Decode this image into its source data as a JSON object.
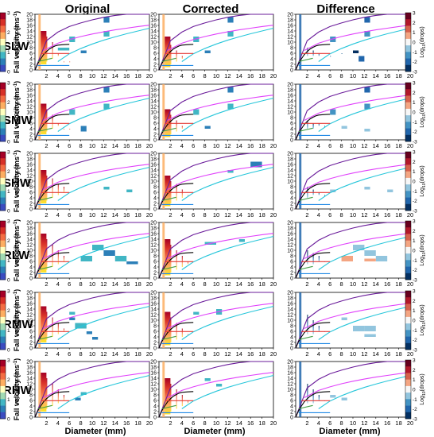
{
  "columns": [
    "Original",
    "Corrected",
    "Difference"
  ],
  "rows": [
    "SLW",
    "SMW",
    "SHW",
    "RLW",
    "RMW",
    "RHW"
  ],
  "x_axis": {
    "label": "Diameter (mm)",
    "ticks": [
      "2",
      "4",
      "6",
      "8",
      "10",
      "12",
      "14",
      "16",
      "18",
      "20"
    ],
    "range": [
      0,
      20
    ]
  },
  "y_axis": {
    "label_main": "Fall velocity (ms",
    "label_sup": "-1",
    "label_tail": ")",
    "ticks": [
      "0",
      "2",
      "4",
      "6",
      "8",
      "10",
      "12",
      "14",
      "16",
      "18",
      "20"
    ],
    "range": [
      0,
      20
    ]
  },
  "colorbars": {
    "count": {
      "label": "Log10(drops)",
      "ticks": [
        "0",
        "1",
        "2",
        "3"
      ],
      "colors": [
        "#3b4cc0",
        "#2c7fb8",
        "#41b6c4",
        "#a1dab4",
        "#ffffbf",
        "#fdae61",
        "#f46d43",
        "#d73027",
        "#a50026"
      ]
    },
    "difference": {
      "label_main": "Log",
      "label_sub": "10",
      "label_tail": "(drops)",
      "ticks": [
        "3",
        "2",
        "1",
        "0",
        "-1",
        "-2",
        "-3"
      ],
      "colors": [
        "#053061",
        "#2166ac",
        "#4393c3",
        "#92c5de",
        "#f7f7f7",
        "#f4a582",
        "#d6604d",
        "#b2182b",
        "#67001f"
      ]
    }
  },
  "chart_data": {
    "type": "heatmap",
    "x_range": [
      0,
      20
    ],
    "y_range": [
      0,
      20
    ],
    "reference_curves": [
      {
        "color": "#6a1b9a",
        "x": [
          0,
          2,
          4,
          6,
          8,
          10,
          12,
          14,
          16,
          18,
          20
        ],
        "y": [
          0,
          10.5,
          13.6,
          15.6,
          16.9,
          18.0,
          18.9,
          19.6,
          20.2,
          20.8,
          21.3
        ]
      },
      {
        "color": "#e040fb",
        "x": [
          1.5,
          4,
          6,
          8,
          10,
          12,
          14,
          16,
          18,
          20
        ],
        "y": [
          7.0,
          9.6,
          10.9,
          12.0,
          12.9,
          13.7,
          14.4,
          15.0,
          15.6,
          16.1
        ]
      },
      {
        "color": "#26c6da",
        "x": [
          4,
          6,
          8,
          10,
          12,
          14,
          16,
          18,
          20
        ],
        "y": [
          3.0,
          5.8,
          7.7,
          9.3,
          10.7,
          11.9,
          13.0,
          14.0,
          15.0
        ]
      },
      {
        "color": "#000000",
        "x": [
          0,
          0.5,
          1,
          1.5,
          2,
          2.5,
          3,
          3.5,
          4,
          5,
          6
        ],
        "y": [
          0,
          2.3,
          4.0,
          5.5,
          6.6,
          7.5,
          8.1,
          8.6,
          8.9,
          9.1,
          9.2
        ]
      },
      {
        "color": "#e53935",
        "x": [
          1,
          6
        ],
        "y": [
          5.9,
          5.9
        ]
      },
      {
        "color": "#1e88e5",
        "x": [
          0.5,
          6
        ],
        "y": [
          1.6,
          1.6
        ]
      },
      {
        "color": "#43a047",
        "x": [
          0.5,
          3
        ],
        "y": [
          3.0,
          4.2
        ]
      }
    ],
    "panels": [
      {
        "row": "SLW",
        "col": "Original",
        "blocks": [
          [
            1,
            2,
            2,
            14
          ],
          [
            2,
            2,
            3,
            12
          ],
          [
            3,
            2,
            4,
            10
          ],
          [
            4,
            2,
            5,
            6
          ],
          [
            5,
            2,
            5,
            3
          ],
          [
            6,
            2,
            6,
            3
          ],
          [
            12,
            13,
            17,
            19,
            "#2c7fb8"
          ],
          [
            12,
            13,
            12,
            14,
            "#41b6c4"
          ],
          [
            6,
            7,
            10,
            12,
            "#41b6c4"
          ],
          [
            4,
            6,
            7,
            8,
            "#41b6c4"
          ],
          [
            8,
            9,
            6,
            7,
            "#2c7fb8"
          ]
        ]
      },
      {
        "row": "SLW",
        "col": "Corrected",
        "blocks": [
          [
            1,
            2,
            1,
            12
          ],
          [
            2,
            2,
            2,
            9
          ],
          [
            3,
            2,
            3,
            7
          ],
          [
            4,
            2,
            4,
            5
          ],
          [
            12,
            13,
            17,
            19,
            "#2c7fb8"
          ],
          [
            12,
            13,
            12,
            14,
            "#41b6c4"
          ],
          [
            6,
            7,
            10,
            12,
            "#41b6c4"
          ],
          [
            8,
            9,
            6,
            7,
            "#2c7fb8"
          ]
        ]
      },
      {
        "row": "SLW",
        "col": "Difference",
        "blocks": [
          [
            2,
            2,
            5,
            8
          ],
          [
            3,
            3,
            5,
            7
          ],
          [
            4,
            2,
            5,
            6
          ],
          [
            6,
            2,
            8,
            5
          ],
          [
            8,
            3,
            9,
            6
          ],
          [
            12,
            13,
            17,
            19,
            "#2166ac"
          ],
          [
            12,
            13,
            12,
            14,
            "#4393c3"
          ],
          [
            6,
            7,
            10,
            12,
            "#4393c3"
          ],
          [
            10,
            11,
            6,
            7,
            "#053061"
          ],
          [
            11,
            12,
            3,
            5,
            "#2166ac"
          ]
        ]
      },
      {
        "row": "SMW",
        "col": "Original",
        "blocks": [
          [
            1,
            2,
            2,
            13
          ],
          [
            2,
            2,
            3,
            11
          ],
          [
            3,
            2,
            4,
            9
          ],
          [
            4,
            2,
            5,
            6
          ],
          [
            5,
            2,
            6,
            4
          ],
          [
            6,
            2,
            7,
            4
          ],
          [
            12,
            13,
            17,
            19,
            "#2c7fb8"
          ],
          [
            12,
            13,
            11,
            13,
            "#41b6c4"
          ],
          [
            6,
            7,
            9,
            11,
            "#41b6c4"
          ],
          [
            8,
            9,
            4,
            5,
            "#2c7fb8"
          ],
          [
            8,
            9,
            3,
            4,
            "#2c7fb8"
          ]
        ]
      },
      {
        "row": "SMW",
        "col": "Corrected",
        "blocks": [
          [
            1,
            2,
            1,
            11
          ],
          [
            2,
            2,
            2,
            9
          ],
          [
            3,
            2,
            3,
            7
          ],
          [
            4,
            2,
            4,
            5
          ],
          [
            12,
            13,
            17,
            19,
            "#2c7fb8"
          ],
          [
            12,
            13,
            11,
            13,
            "#41b6c4"
          ],
          [
            6,
            7,
            9,
            11,
            "#41b6c4"
          ],
          [
            8,
            9,
            4,
            5,
            "#2c7fb8"
          ]
        ]
      },
      {
        "row": "SMW",
        "col": "Difference",
        "blocks": [
          [
            2,
            2,
            4,
            7
          ],
          [
            3,
            3,
            4,
            6
          ],
          [
            4,
            2,
            5,
            6
          ],
          [
            5,
            3,
            6,
            5
          ],
          [
            12,
            13,
            17,
            19,
            "#2166ac"
          ],
          [
            12,
            13,
            11,
            13,
            "#4393c3"
          ],
          [
            6,
            7,
            9,
            11,
            "#4393c3"
          ],
          [
            8,
            9,
            4,
            5,
            "#92c5de"
          ],
          [
            12,
            13,
            3,
            4,
            "#92c5de"
          ]
        ]
      },
      {
        "row": "SHW",
        "col": "Original",
        "blocks": [
          [
            1,
            2,
            2,
            14
          ],
          [
            2,
            2,
            3,
            12
          ],
          [
            3,
            2,
            4,
            11
          ],
          [
            4,
            2,
            5,
            9
          ],
          [
            5,
            2,
            6,
            8
          ],
          [
            6,
            2,
            7,
            6
          ],
          [
            12,
            13,
            7,
            8,
            "#41b6c4"
          ],
          [
            16,
            17,
            6,
            7,
            "#41b6c4"
          ]
        ]
      },
      {
        "row": "SHW",
        "col": "Corrected",
        "blocks": [
          [
            1,
            2,
            1,
            12
          ],
          [
            2,
            2,
            2,
            10
          ],
          [
            3,
            2,
            3,
            9
          ],
          [
            4,
            2,
            4,
            7
          ],
          [
            5,
            2,
            5,
            5
          ],
          [
            16,
            18,
            15,
            17,
            "#2c7fb8"
          ],
          [
            12,
            13,
            13,
            14,
            "#41b6c4"
          ]
        ]
      },
      {
        "row": "SHW",
        "col": "Difference",
        "blocks": [
          [
            2,
            2,
            4,
            8
          ],
          [
            3,
            3,
            5,
            7
          ],
          [
            4,
            2,
            5,
            6
          ],
          [
            5,
            3,
            6,
            5
          ],
          [
            12,
            13,
            7,
            8,
            "#92c5de"
          ],
          [
            16,
            17,
            6,
            7,
            "#92c5de"
          ],
          [
            6,
            7,
            6,
            7,
            "#92c5de"
          ]
        ]
      },
      {
        "row": "RLW",
        "col": "Original",
        "blocks": [
          [
            1,
            2,
            2,
            16
          ],
          [
            2,
            2,
            3,
            14
          ],
          [
            3,
            2,
            4,
            12
          ],
          [
            4,
            2,
            5,
            10
          ],
          [
            5,
            2,
            6,
            8
          ],
          [
            6,
            2,
            7,
            6
          ],
          [
            10,
            12,
            10,
            12,
            "#41b6c4"
          ],
          [
            12,
            14,
            8,
            10,
            "#2c7fb8"
          ],
          [
            14,
            16,
            6,
            8,
            "#41b6c4"
          ],
          [
            16,
            18,
            5,
            6,
            "#2c7fb8"
          ],
          [
            8,
            10,
            6,
            8,
            "#41b6c4"
          ]
        ]
      },
      {
        "row": "RLW",
        "col": "Corrected",
        "blocks": [
          [
            1,
            2,
            1,
            14
          ],
          [
            2,
            2,
            2,
            12
          ],
          [
            3,
            2,
            3,
            10
          ],
          [
            4,
            2,
            4,
            8
          ],
          [
            5,
            2,
            5,
            6
          ],
          [
            8,
            10,
            12,
            13,
            "#41b6c4"
          ],
          [
            14,
            15,
            13,
            14,
            "#41b6c4"
          ]
        ]
      },
      {
        "row": "RLW",
        "col": "Difference",
        "blocks": [
          [
            2,
            2,
            5,
            10
          ],
          [
            3,
            3,
            5,
            9
          ],
          [
            4,
            2,
            6,
            8
          ],
          [
            5,
            3,
            7,
            6
          ],
          [
            10,
            12,
            10,
            12,
            "#92c5de"
          ],
          [
            12,
            14,
            8,
            10,
            "#92c5de"
          ],
          [
            14,
            16,
            6,
            8,
            "#92c5de"
          ],
          [
            8,
            10,
            6,
            8,
            "#f4a582"
          ],
          [
            12,
            14,
            6,
            7,
            "#f4a582"
          ]
        ]
      },
      {
        "row": "RMW",
        "col": "Original",
        "blocks": [
          [
            1,
            2,
            2,
            15
          ],
          [
            2,
            2,
            3,
            13
          ],
          [
            3,
            2,
            4,
            11
          ],
          [
            4,
            2,
            5,
            9
          ],
          [
            5,
            2,
            6,
            7
          ],
          [
            6,
            2,
            7,
            6
          ],
          [
            6,
            7,
            12,
            13,
            "#41b6c4"
          ],
          [
            6,
            7,
            10,
            11,
            "#2c7fb8"
          ],
          [
            7,
            9,
            7,
            9,
            "#41b6c4"
          ],
          [
            9,
            10,
            5,
            6,
            "#2c7fb8"
          ],
          [
            10,
            11,
            3,
            4,
            "#2c7fb8"
          ]
        ]
      },
      {
        "row": "RMW",
        "col": "Corrected",
        "blocks": [
          [
            1,
            2,
            1,
            13
          ],
          [
            2,
            2,
            2,
            11
          ],
          [
            3,
            2,
            3,
            9
          ],
          [
            4,
            2,
            4,
            7
          ],
          [
            5,
            2,
            5,
            5
          ],
          [
            6,
            7,
            12,
            13,
            "#41b6c4"
          ],
          [
            10,
            11,
            12,
            14,
            "#41b6c4"
          ]
        ]
      },
      {
        "row": "RMW",
        "col": "Difference",
        "blocks": [
          [
            2,
            2,
            5,
            12
          ],
          [
            3,
            3,
            5,
            10
          ],
          [
            4,
            2,
            6,
            8
          ],
          [
            5,
            3,
            6,
            6
          ],
          [
            8,
            9,
            10,
            11,
            "#92c5de"
          ],
          [
            10,
            12,
            6,
            8,
            "#92c5de"
          ],
          [
            12,
            14,
            6,
            8,
            "#92c5de"
          ],
          [
            12,
            14,
            4,
            5,
            "#92c5de"
          ]
        ]
      },
      {
        "row": "RHW",
        "col": "Original",
        "blocks": [
          [
            1,
            2,
            2,
            16
          ],
          [
            2,
            2,
            3,
            14
          ],
          [
            3,
            2,
            4,
            12
          ],
          [
            4,
            2,
            5,
            10
          ],
          [
            5,
            2,
            6,
            8
          ],
          [
            6,
            2,
            7,
            6
          ],
          [
            8,
            9,
            8,
            9,
            "#41b6c4"
          ],
          [
            7,
            8,
            6,
            7,
            "#2c7fb8"
          ]
        ]
      },
      {
        "row": "RHW",
        "col": "Corrected",
        "blocks": [
          [
            1,
            2,
            1,
            14
          ],
          [
            2,
            2,
            2,
            12
          ],
          [
            3,
            2,
            3,
            10
          ],
          [
            4,
            2,
            4,
            8
          ],
          [
            5,
            2,
            5,
            6
          ],
          [
            10,
            11,
            11,
            12,
            "#41b6c4"
          ],
          [
            8,
            9,
            13,
            14,
            "#41b6c4"
          ]
        ]
      },
      {
        "row": "RHW",
        "col": "Difference",
        "blocks": [
          [
            2,
            2,
            5,
            12
          ],
          [
            3,
            3,
            5,
            10
          ],
          [
            4,
            2,
            6,
            8
          ],
          [
            5,
            3,
            7,
            6
          ],
          [
            6,
            7,
            7,
            8,
            "#92c5de"
          ],
          [
            8,
            9,
            6,
            7,
            "#92c5de"
          ]
        ]
      }
    ]
  }
}
